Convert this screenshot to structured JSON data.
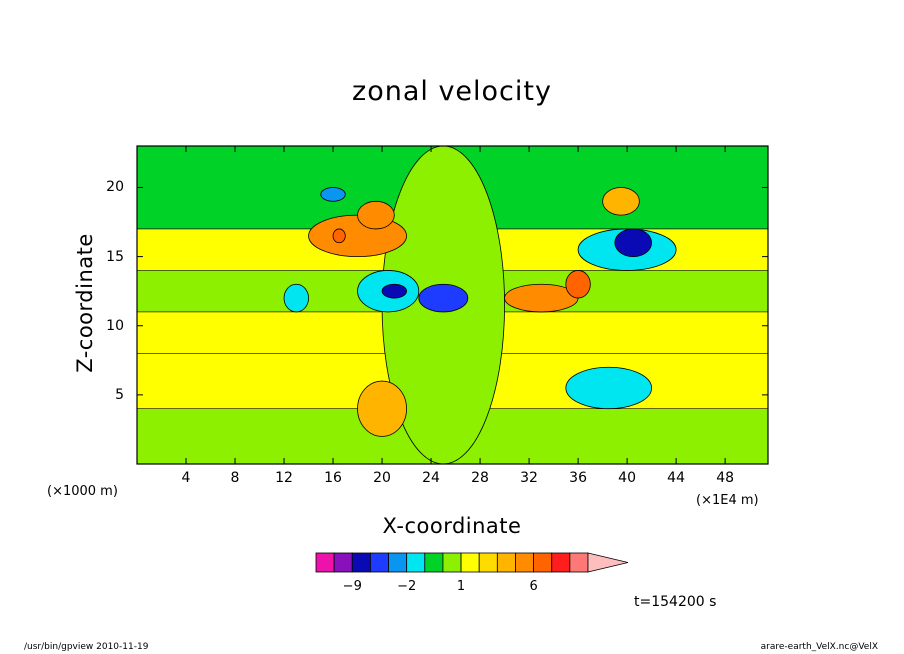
{
  "chart_data": {
    "type": "heatmap",
    "subtype": "filled-contour",
    "title": "zonal velocity",
    "xlabel": "X-coordinate",
    "ylabel": "Z-coordinate",
    "x_unit_label": "(×1E4 m)",
    "y_unit_label": "(×1000 m)",
    "xlim": [
      0,
      51.5
    ],
    "ylim": [
      0,
      23
    ],
    "x_ticks": [
      4,
      8,
      12,
      16,
      20,
      24,
      28,
      32,
      36,
      40,
      44,
      48
    ],
    "y_ticks": [
      5,
      10,
      15,
      20
    ],
    "colorbar": {
      "levels": [
        {
          "lo": -15,
          "hi": -12,
          "color": "#ee11aa"
        },
        {
          "lo": -12,
          "hi": -9,
          "color": "#8811bb"
        },
        {
          "lo": -9,
          "hi": -6,
          "color": "#0a0ab4"
        },
        {
          "lo": -6,
          "hi": -4,
          "color": "#1e3cff"
        },
        {
          "lo": -4,
          "hi": -2,
          "color": "#0a96f0"
        },
        {
          "lo": -2,
          "hi": -1,
          "color": "#00e6f0"
        },
        {
          "lo": -1,
          "hi": 0,
          "color": "#00d228"
        },
        {
          "lo": 0,
          "hi": 1,
          "color": "#8cf000"
        },
        {
          "lo": 1,
          "hi": 2,
          "color": "#ffff00"
        },
        {
          "lo": 2,
          "hi": 3,
          "color": "#ffdc00"
        },
        {
          "lo": 3,
          "hi": 4,
          "color": "#ffb400"
        },
        {
          "lo": 4,
          "hi": 6,
          "color": "#ff8c00"
        },
        {
          "lo": 6,
          "hi": 9,
          "color": "#ff6400"
        },
        {
          "lo": 9,
          "hi": 12,
          "color": "#ff1e1e"
        },
        {
          "lo": 12,
          "hi": 15,
          "color": "#ff7878"
        },
        {
          "lo": 15,
          "hi": 18,
          "color": "#ffbebe"
        }
      ],
      "tick_labels": [
        {
          "value": -9,
          "text": "−9"
        },
        {
          "value": -2,
          "text": "−2"
        },
        {
          "value": 1,
          "text": "1"
        },
        {
          "value": 6,
          "text": "6"
        }
      ]
    },
    "regions": [
      {
        "x": [
          0,
          51.5
        ],
        "y": [
          0,
          23
        ],
        "level": 0
      },
      {
        "x": [
          0,
          51.5
        ],
        "y": [
          17,
          23
        ],
        "level": -1
      },
      {
        "x": [
          0,
          51.5
        ],
        "y": [
          14,
          17
        ],
        "level": 1
      },
      {
        "x": [
          0,
          51.5
        ],
        "y": [
          7,
          11
        ],
        "level": 1
      },
      {
        "x": [
          0,
          51.5
        ],
        "y": [
          4,
          8
        ],
        "level": 1
      },
      {
        "x": [
          20,
          30
        ],
        "y": [
          0,
          23
        ],
        "level": 0
      },
      {
        "x": [
          18,
          22
        ],
        "y": [
          2,
          6
        ],
        "level": 3
      },
      {
        "x": [
          14,
          22
        ],
        "y": [
          15,
          18
        ],
        "level": 4
      },
      {
        "x": [
          16,
          17
        ],
        "y": [
          16,
          17
        ],
        "level": 6
      },
      {
        "x": [
          18,
          21
        ],
        "y": [
          17,
          19
        ],
        "level": 4
      },
      {
        "x": [
          15,
          17
        ],
        "y": [
          19,
          20
        ],
        "level": -4
      },
      {
        "x": [
          18,
          23
        ],
        "y": [
          11,
          14
        ],
        "level": -2
      },
      {
        "x": [
          20,
          22
        ],
        "y": [
          12,
          13
        ],
        "level": -9
      },
      {
        "x": [
          23,
          27
        ],
        "y": [
          11,
          13
        ],
        "level": -6
      },
      {
        "x": [
          30,
          36
        ],
        "y": [
          11,
          13
        ],
        "level": 4
      },
      {
        "x": [
          35,
          37
        ],
        "y": [
          12,
          14
        ],
        "level": 6
      },
      {
        "x": [
          36,
          44
        ],
        "y": [
          14,
          17
        ],
        "level": -2
      },
      {
        "x": [
          39,
          42
        ],
        "y": [
          15,
          17
        ],
        "level": -9
      },
      {
        "x": [
          38,
          41
        ],
        "y": [
          18,
          20
        ],
        "level": 3
      },
      {
        "x": [
          35,
          42
        ],
        "y": [
          4,
          7
        ],
        "level": -2
      },
      {
        "x": [
          12,
          14
        ],
        "y": [
          11,
          13
        ],
        "level": -2
      }
    ]
  },
  "time_label": "t=154200 s",
  "footer": {
    "left": "/usr/bin/gpview   2010-11-19",
    "right": "arare-earth_VelX.nc@VelX"
  },
  "colors": {
    "contour_line": "#000000",
    "frame": "#000000"
  }
}
